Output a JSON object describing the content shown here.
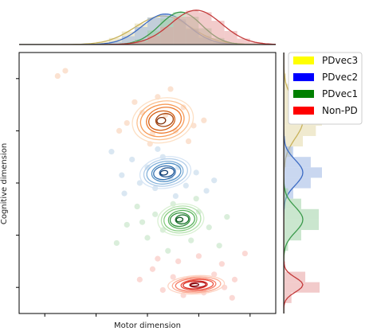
{
  "chart_data": {
    "type": "scatter",
    "subtype": "joint-kde-plot-with-marginal-histograms",
    "xlabel": "Motor dimension",
    "ylabel": "Cognitive dimension",
    "tick_labels_visible": false,
    "grid": false,
    "legend_placement": "right-top",
    "x_range": [
      -5,
      5
    ],
    "y_range": [
      -5,
      5
    ],
    "series": [
      {
        "name": "PDvec3",
        "color": "#ffff00",
        "kde_cmap": "orange",
        "center": [
          0.6,
          2.4
        ],
        "spread": [
          1.2,
          0.85
        ],
        "points": [
          [
            -3.5,
            4.1
          ],
          [
            -3.2,
            4.3
          ],
          [
            -0.8,
            2.3
          ],
          [
            -0.5,
            3.1
          ],
          [
            0.2,
            1.9
          ],
          [
            0.4,
            3.3
          ],
          [
            0.7,
            2.6
          ],
          [
            1.1,
            2.0
          ],
          [
            1.4,
            2.9
          ],
          [
            1.8,
            2.2
          ],
          [
            -0.2,
            2.7
          ],
          [
            0.9,
            3.6
          ],
          [
            1.6,
            1.6
          ],
          [
            0.1,
            1.5
          ],
          [
            2.2,
            2.4
          ],
          [
            -1.1,
            2.0
          ]
        ]
      },
      {
        "name": "PDvec2",
        "color": "#0000ff",
        "kde_cmap": "blue",
        "center": [
          0.7,
          0.4
        ],
        "spread": [
          1.0,
          0.6
        ],
        "points": [
          [
            -1.4,
            1.2
          ],
          [
            -1.0,
            0.3
          ],
          [
            -0.6,
            0.9
          ],
          [
            -0.3,
            0.0
          ],
          [
            0.0,
            0.6
          ],
          [
            0.3,
            -0.2
          ],
          [
            0.6,
            1.0
          ],
          [
            0.9,
            0.2
          ],
          [
            1.2,
            0.6
          ],
          [
            1.5,
            -0.1
          ],
          [
            1.9,
            0.4
          ],
          [
            2.3,
            -0.3
          ],
          [
            -0.9,
            -0.4
          ],
          [
            0.4,
            1.3
          ],
          [
            1.1,
            -0.5
          ],
          [
            2.6,
            0.1
          ]
        ]
      },
      {
        "name": "PDvec1",
        "color": "#008000",
        "kde_cmap": "green",
        "center": [
          1.3,
          -1.4
        ],
        "spread": [
          0.9,
          0.6
        ],
        "points": [
          [
            -0.8,
            -1.6
          ],
          [
            -0.4,
            -0.9
          ],
          [
            0.0,
            -2.1
          ],
          [
            0.3,
            -1.2
          ],
          [
            0.6,
            -1.8
          ],
          [
            1.0,
            -0.8
          ],
          [
            1.3,
            -1.5
          ],
          [
            1.7,
            -2.2
          ],
          [
            2.0,
            -1.1
          ],
          [
            2.4,
            -1.7
          ],
          [
            2.8,
            -2.4
          ],
          [
            -1.2,
            -2.3
          ],
          [
            0.8,
            -2.6
          ],
          [
            1.9,
            -0.6
          ],
          [
            3.1,
            -1.3
          ],
          [
            -0.2,
            -1.5
          ]
        ]
      },
      {
        "name": "Non-PD",
        "color": "#ff0000",
        "kde_cmap": "red",
        "center": [
          1.9,
          -3.9
        ],
        "spread": [
          1.1,
          0.35
        ],
        "points": [
          [
            0.2,
            -3.3
          ],
          [
            0.6,
            -4.1
          ],
          [
            1.0,
            -3.6
          ],
          [
            1.4,
            -4.3
          ],
          [
            1.8,
            -3.8
          ],
          [
            2.2,
            -4.2
          ],
          [
            2.6,
            -3.5
          ],
          [
            3.0,
            -4.0
          ],
          [
            3.4,
            -3.7
          ],
          [
            0.4,
            -2.9
          ],
          [
            2.9,
            -3.1
          ],
          [
            3.8,
            -2.7
          ],
          [
            1.2,
            -3.0
          ],
          [
            3.3,
            -4.4
          ],
          [
            -0.3,
            -3.7
          ],
          [
            2.0,
            -2.8
          ]
        ]
      }
    ],
    "legend": [
      {
        "label": "PDvec3",
        "color": "#ffff00"
      },
      {
        "label": "PDvec2",
        "color": "#0000ff"
      },
      {
        "label": "PDvec1",
        "color": "#008000"
      },
      {
        "label": "Non-PD",
        "color": "#ff0000"
      }
    ]
  }
}
